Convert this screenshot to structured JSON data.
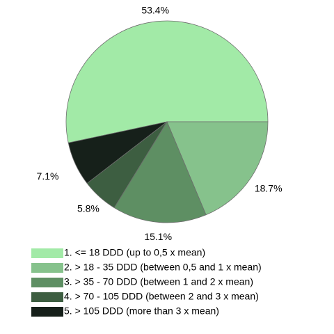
{
  "chart_data": {
    "type": "pie",
    "slices": [
      {
        "label": "1. <= 18 DDD (up to 0,5 x mean)",
        "value": 53.4,
        "value_label": "53.4%",
        "color": "#a2eaa7"
      },
      {
        "label": "2. > 18 - 35 DDD (between 0,5 and 1 x mean)",
        "value": 18.7,
        "value_label": "18.7%",
        "color": "#86c28c"
      },
      {
        "label": "3. > 35 - 70 DDD (between 1 and 2 x mean)",
        "value": 15.1,
        "value_label": "15.1%",
        "color": "#5e8f63"
      },
      {
        "label": "4. > 70 - 105 DDD (between 2 and 3 x mean)",
        "value": 5.8,
        "value_label": "5.8%",
        "color": "#3d5e41"
      },
      {
        "label": "5. > 105 DDD (more than 3 x mean)",
        "value": 7.1,
        "value_label": "7.1%",
        "color": "#16201a"
      }
    ],
    "legend_position": "bottom"
  }
}
